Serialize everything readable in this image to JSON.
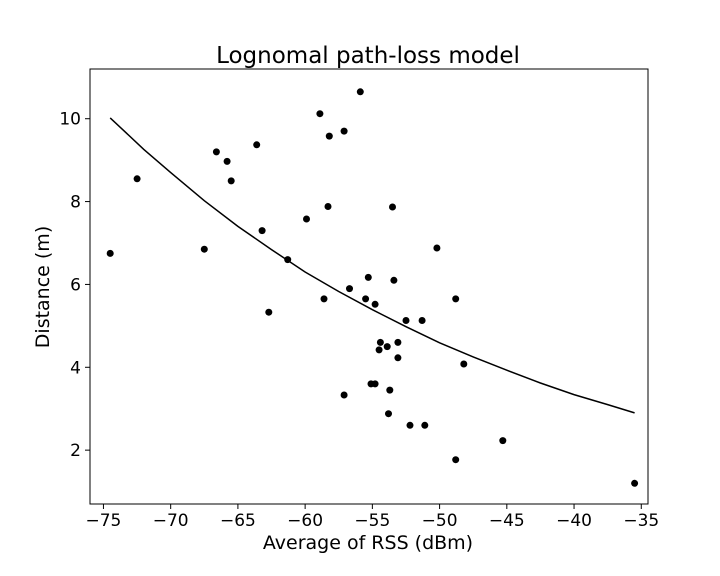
{
  "chart_data": {
    "type": "scatter",
    "title": "Lognomal path-loss model",
    "xlabel": "Average of RSS (dBm)",
    "ylabel": "Distance (m)",
    "xlim": [
      -76.0,
      -34.5
    ],
    "ylim": [
      0.7,
      11.2
    ],
    "xticks": [
      -75,
      -70,
      -65,
      -60,
      -55,
      -50,
      -45,
      -40,
      -35
    ],
    "xtick_labels": [
      "−75",
      "−70",
      "−65",
      "−60",
      "−55",
      "−50",
      "−45",
      "−40",
      "−35"
    ],
    "yticks": [
      2,
      4,
      6,
      8,
      10
    ],
    "ytick_labels": [
      "2",
      "4",
      "6",
      "8",
      "10"
    ],
    "grid": false,
    "colors": {
      "points": "#000000",
      "curve": "#000000"
    },
    "series": [
      {
        "type": "scatter",
        "points": [
          [
            -74.5,
            6.75
          ],
          [
            -72.5,
            8.55
          ],
          [
            -67.5,
            6.85
          ],
          [
            -66.6,
            9.2
          ],
          [
            -65.8,
            8.97
          ],
          [
            -65.5,
            8.5
          ],
          [
            -63.6,
            9.37
          ],
          [
            -63.2,
            7.3
          ],
          [
            -62.7,
            5.33
          ],
          [
            -61.3,
            6.6
          ],
          [
            -59.9,
            7.58
          ],
          [
            -58.9,
            10.12
          ],
          [
            -58.6,
            5.65
          ],
          [
            -58.3,
            7.88
          ],
          [
            -58.2,
            9.58
          ],
          [
            -57.1,
            9.7
          ],
          [
            -57.1,
            3.33
          ],
          [
            -56.7,
            5.9
          ],
          [
            -55.9,
            10.65
          ],
          [
            -55.5,
            5.65
          ],
          [
            -55.3,
            6.17
          ],
          [
            -55.1,
            3.6
          ],
          [
            -54.8,
            3.6
          ],
          [
            -54.8,
            5.52
          ],
          [
            -54.5,
            4.42
          ],
          [
            -54.4,
            4.6
          ],
          [
            -53.9,
            4.5
          ],
          [
            -53.8,
            2.88
          ],
          [
            -53.7,
            3.45
          ],
          [
            -53.5,
            7.87
          ],
          [
            -53.4,
            6.1
          ],
          [
            -53.1,
            4.6
          ],
          [
            -53.1,
            4.23
          ],
          [
            -52.5,
            5.13
          ],
          [
            -52.2,
            2.6
          ],
          [
            -51.3,
            5.13
          ],
          [
            -51.1,
            2.6
          ],
          [
            -50.2,
            6.88
          ],
          [
            -48.8,
            5.65
          ],
          [
            -48.8,
            1.77
          ],
          [
            -48.2,
            4.08
          ],
          [
            -45.3,
            2.23
          ],
          [
            -35.5,
            1.2
          ]
        ]
      },
      {
        "type": "line",
        "points": [
          [
            -74.5,
            10.02
          ],
          [
            -72.0,
            9.26
          ],
          [
            -70.0,
            8.7
          ],
          [
            -67.5,
            8.02
          ],
          [
            -65.0,
            7.4
          ],
          [
            -62.5,
            6.84
          ],
          [
            -60.0,
            6.3
          ],
          [
            -57.5,
            5.83
          ],
          [
            -55.0,
            5.39
          ],
          [
            -52.5,
            4.98
          ],
          [
            -50.0,
            4.59
          ],
          [
            -47.5,
            4.25
          ],
          [
            -45.0,
            3.93
          ],
          [
            -42.5,
            3.62
          ],
          [
            -40.0,
            3.34
          ],
          [
            -37.5,
            3.1
          ],
          [
            -35.5,
            2.9
          ]
        ]
      }
    ]
  }
}
